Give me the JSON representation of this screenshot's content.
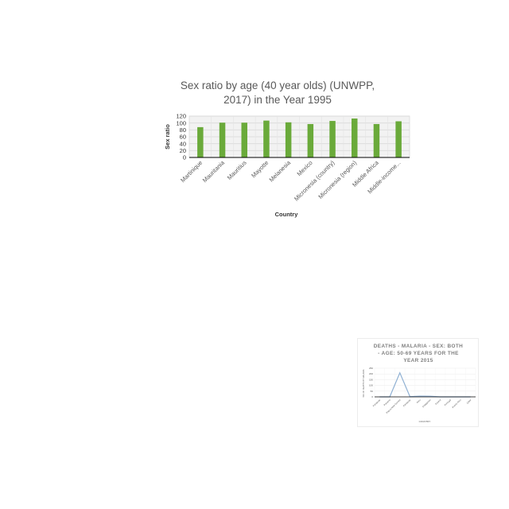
{
  "charts": [
    {
      "chart_data": {
        "type": "bar",
        "title": "Sex ratio by age (40 year olds) (UNWPP, 2017) in the Year 1995",
        "xlabel": "Country",
        "ylabel": "Sex ratio",
        "categories": [
          "Martinique",
          "Mauritania",
          "Mauritius",
          "Mayotte",
          "Melanesia",
          "Mexico",
          "Micronesia (country)",
          "Micronesia (region)",
          "Middle Africa",
          "Middle-income..."
        ],
        "values": [
          88,
          101,
          101,
          107,
          102,
          97,
          106,
          113,
          97,
          105
        ],
        "ylim": [
          0,
          120
        ],
        "yticks": [
          0,
          20,
          40,
          60,
          80,
          100,
          120
        ],
        "grid": true,
        "legend": "none",
        "bar_color": "#6aaa3a"
      }
    },
    {
      "chart_data": {
        "type": "line",
        "title": "DEATHS - MALARIA - SEX: BOTH - AGE: 50-69 YEARS FOR THE YEAR 2015",
        "xlabel": "COUNTRY",
        "ylabel": "NO. OF DEATHS BY MALARIA",
        "categories": [
          "Paraguay",
          "Panama",
          "Papua New Guinea",
          "Paraguay",
          "Peru",
          "Philippines",
          "Poland",
          "Portugal",
          "Puerto Rico",
          "Qatar"
        ],
        "values": [
          0,
          0,
          210,
          2,
          6,
          5,
          0,
          0,
          0,
          0
        ],
        "ylim": [
          0,
          250
        ],
        "yticks": [
          0,
          50,
          100,
          150,
          200,
          250
        ],
        "grid": true,
        "legend": "none",
        "line_color": "#8fb0d3"
      }
    }
  ]
}
